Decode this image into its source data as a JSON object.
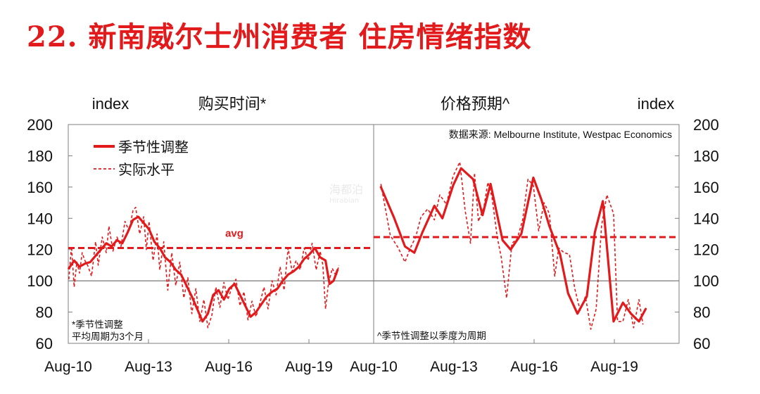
{
  "title": "22. 新南威尔士州消费者 住房情绪指数",
  "watermark": {
    "line1": "海都泊",
    "line2": "Hirabian"
  },
  "chart_data": [
    {
      "type": "line",
      "panel": "left",
      "title": "购买时间*",
      "ylabel": "index",
      "ylim": [
        60,
        200
      ],
      "yticks": [
        60,
        80,
        100,
        120,
        140,
        160,
        180,
        200
      ],
      "xlim": [
        2010.58,
        2022.0
      ],
      "xticks": [
        {
          "value": 2010.58,
          "label": "Aug-10"
        },
        {
          "value": 2013.58,
          "label": "Aug-13"
        },
        {
          "value": 2016.58,
          "label": "Aug-16"
        },
        {
          "value": 2019.58,
          "label": "Aug-19"
        }
      ],
      "baseline": 100,
      "avg": {
        "value": 121,
        "label": "avg"
      },
      "legend": {
        "placement": "top-left",
        "items": [
          {
            "name": "季节性调整",
            "style": "solid"
          },
          {
            "name": "实际水平",
            "style": "dashed"
          }
        ]
      },
      "note": [
        "*季节性调整",
        "平均周期为3个月"
      ],
      "series": [
        {
          "name": "季节性调整",
          "style": "solid",
          "x": [
            2010.6,
            2010.8,
            2011.0,
            2011.2,
            2011.4,
            2011.6,
            2011.8,
            2012.0,
            2012.2,
            2012.4,
            2012.6,
            2012.8,
            2013.0,
            2013.2,
            2013.4,
            2013.6,
            2013.8,
            2014.0,
            2014.2,
            2014.4,
            2014.6,
            2014.8,
            2015.0,
            2015.2,
            2015.4,
            2015.6,
            2015.8,
            2016.0,
            2016.2,
            2016.4,
            2016.6,
            2016.8,
            2017.0,
            2017.2,
            2017.4,
            2017.6,
            2017.8,
            2018.0,
            2018.2,
            2018.4,
            2018.6,
            2018.8,
            2019.0,
            2019.2,
            2019.4,
            2019.6,
            2019.8,
            2020.0,
            2020.2,
            2020.35,
            2020.5,
            2020.65
          ],
          "y": [
            108,
            113,
            109,
            111,
            112,
            116,
            120,
            124,
            122,
            126,
            124,
            131,
            139,
            141,
            137,
            133,
            125,
            121,
            115,
            112,
            107,
            104,
            97,
            90,
            82,
            74,
            79,
            91,
            94,
            88,
            95,
            98,
            91,
            84,
            77,
            80,
            85,
            90,
            93,
            95,
            100,
            104,
            106,
            109,
            114,
            117,
            121,
            115,
            113,
            98,
            100,
            107
          ]
        },
        {
          "name": "实际水平",
          "style": "dashed",
          "x": [
            2010.6,
            2010.7,
            2010.8,
            2010.9,
            2011.0,
            2011.1,
            2011.2,
            2011.3,
            2011.45,
            2011.6,
            2011.7,
            2011.85,
            2012.0,
            2012.1,
            2012.25,
            2012.4,
            2012.55,
            2012.7,
            2012.85,
            2013.0,
            2013.1,
            2013.25,
            2013.4,
            2013.5,
            2013.6,
            2013.75,
            2013.9,
            2014.0,
            2014.15,
            2014.3,
            2014.45,
            2014.6,
            2014.75,
            2014.9,
            2015.05,
            2015.2,
            2015.35,
            2015.5,
            2015.65,
            2015.8,
            2015.95,
            2016.1,
            2016.25,
            2016.4,
            2016.55,
            2016.7,
            2016.85,
            2017.0,
            2017.15,
            2017.3,
            2017.45,
            2017.6,
            2017.75,
            2017.9,
            2018.05,
            2018.2,
            2018.35,
            2018.5,
            2018.65,
            2018.8,
            2018.95,
            2019.1,
            2019.25,
            2019.4,
            2019.55,
            2019.7,
            2019.85,
            2020.0,
            2020.1,
            2020.2,
            2020.3,
            2020.45,
            2020.6,
            2020.7
          ],
          "y": [
            101,
            122,
            96,
            112,
            105,
            118,
            113,
            110,
            103,
            125,
            110,
            128,
            118,
            135,
            119,
            128,
            122,
            138,
            132,
            145,
            147,
            130,
            141,
            120,
            138,
            113,
            130,
            107,
            125,
            94,
            118,
            97,
            112,
            89,
            102,
            79,
            95,
            74,
            88,
            70,
            78,
            96,
            83,
            99,
            88,
            96,
            101,
            84,
            93,
            75,
            87,
            77,
            86,
            96,
            82,
            100,
            91,
            109,
            94,
            121,
            106,
            113,
            107,
            121,
            113,
            124,
            107,
            119,
            110,
            82,
            97,
            108,
            103,
            110
          ]
        }
      ]
    },
    {
      "type": "line",
      "panel": "right",
      "title": "价格预期^",
      "ylabel": "index",
      "ylim": [
        60,
        200
      ],
      "yticks": [
        60,
        80,
        100,
        120,
        140,
        160,
        180,
        200
      ],
      "xlim": [
        2010.58,
        2022.0
      ],
      "xticks": [
        {
          "value": 2010.58,
          "label": "Aug-10"
        },
        {
          "value": 2013.58,
          "label": "Aug-13"
        },
        {
          "value": 2016.58,
          "label": "Aug-16"
        },
        {
          "value": 2019.58,
          "label": "Aug-19"
        }
      ],
      "baseline": 100,
      "avg": {
        "value": 128,
        "label": ""
      },
      "source": "数据来源: Melbourne Institute, Westpac Economics",
      "note": [
        "^季节性调整以季度为周期"
      ],
      "series": [
        {
          "name": "季节性调整",
          "style": "solid",
          "x": [
            2010.85,
            2011.35,
            2011.75,
            2012.1,
            2012.4,
            2012.85,
            2013.15,
            2013.55,
            2013.85,
            2014.3,
            2014.65,
            2014.95,
            2015.4,
            2015.7,
            2016.1,
            2016.55,
            2016.85,
            2017.15,
            2017.55,
            2017.85,
            2018.2,
            2018.55,
            2018.85,
            2019.15,
            2019.55,
            2019.9,
            2020.2,
            2020.5,
            2020.75
          ],
          "y": [
            160,
            140,
            122,
            118,
            131,
            148,
            140,
            161,
            172,
            165,
            142,
            162,
            126,
            120,
            130,
            166,
            152,
            135,
            117,
            92,
            79,
            90,
            131,
            151,
            74,
            86,
            79,
            74,
            82
          ]
        },
        {
          "name": "实际水平",
          "style": "dashed",
          "x": [
            2010.85,
            2011.2,
            2011.5,
            2011.75,
            2011.95,
            2012.15,
            2012.35,
            2012.6,
            2012.85,
            2013.05,
            2013.3,
            2013.55,
            2013.8,
            2014.0,
            2014.2,
            2014.35,
            2014.5,
            2014.7,
            2014.85,
            2015.0,
            2015.2,
            2015.35,
            2015.55,
            2015.75,
            2015.95,
            2016.15,
            2016.35,
            2016.55,
            2016.75,
            2016.95,
            2017.15,
            2017.35,
            2017.5,
            2017.7,
            2017.9,
            2018.1,
            2018.3,
            2018.5,
            2018.7,
            2018.9,
            2019.1,
            2019.3,
            2019.55,
            2019.7,
            2019.9,
            2020.1,
            2020.3,
            2020.5,
            2020.65
          ],
          "y": [
            162,
            129,
            121,
            112,
            121,
            128,
            141,
            146,
            139,
            155,
            149,
            167,
            176,
            145,
            124,
            169,
            138,
            147,
            163,
            154,
            128,
            115,
            89,
            124,
            127,
            139,
            165,
            161,
            132,
            150,
            143,
            103,
            121,
            118,
            117,
            95,
            81,
            90,
            69,
            82,
            135,
            155,
            143,
            74,
            74,
            88,
            70,
            88,
            72
          ]
        }
      ]
    }
  ]
}
